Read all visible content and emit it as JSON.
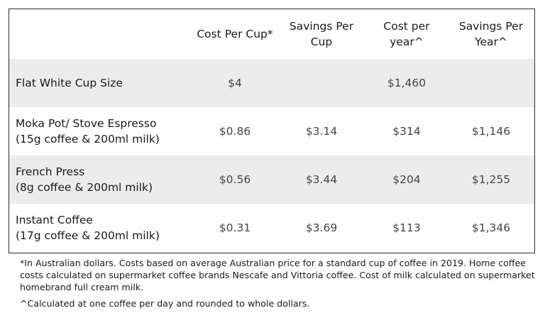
{
  "table": {
    "headers": [
      "",
      "Cost Per Cup*",
      "Savings Per Cup",
      "Cost per year^",
      "Savings Per Year^"
    ],
    "rows": [
      {
        "name_line1": "Flat White Cup Size",
        "name_line2": "",
        "cost_per_cup": "$4",
        "savings_per_cup": "",
        "cost_per_year": "$1,460",
        "savings_per_year": ""
      },
      {
        "name_line1": "Moka Pot/ Stove Espresso",
        "name_line2": "(15g coffee & 200ml milk)",
        "cost_per_cup": "$0.86",
        "savings_per_cup": "$3.14",
        "cost_per_year": "$314",
        "savings_per_year": "$1,146"
      },
      {
        "name_line1": "French Press",
        "name_line2": "(8g coffee & 200ml milk)",
        "cost_per_cup": "$0.56",
        "savings_per_cup": "$3.44",
        "cost_per_year": "$204",
        "savings_per_year": "$1,255"
      },
      {
        "name_line1": "Instant Coffee",
        "name_line2": "(17g coffee & 200ml milk)",
        "cost_per_cup": "$0.31",
        "savings_per_cup": "$3.69",
        "cost_per_year": "$113",
        "savings_per_year": "$1,346"
      }
    ]
  },
  "footnotes": {
    "note1": "*In Australian dollars. Costs based on average Australian price for a standard cup of coffee in 2019. Home coffee costs calculated on supermarket coffee brands Nescafe and Vittoria coffee. Cost of milk calculated on supermarket homebrand full cream milk.",
    "note2": "^Calculated at one coffee per day and rounded to whole dollars."
  }
}
